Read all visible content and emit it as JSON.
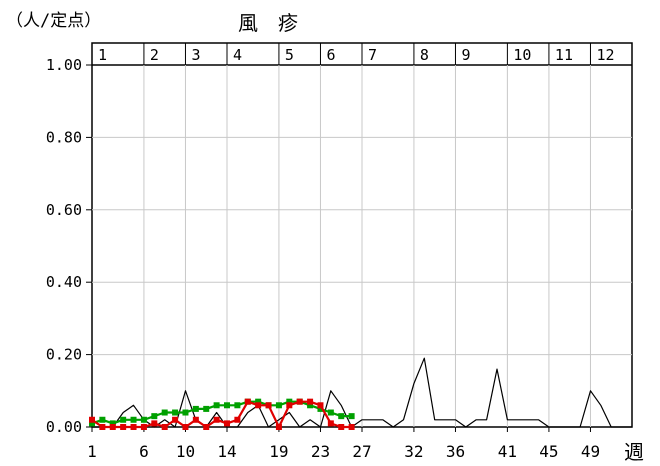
{
  "chart_data": {
    "type": "line",
    "title": "風　疹",
    "unit_label": "（人/定点）",
    "xlabel": "週",
    "ylim": [
      0,
      1.0
    ],
    "xlim": [
      1,
      53
    ],
    "ytick_labels": [
      "0.00",
      "0.20",
      "0.40",
      "0.60",
      "0.80",
      "1.00"
    ],
    "yticks": [
      0,
      0.2,
      0.4,
      0.6,
      0.8,
      1.0
    ],
    "xtick_labels": [
      "1",
      "6",
      "10",
      "14",
      "19",
      "23",
      "27",
      "32",
      "36",
      "41",
      "45",
      "49"
    ],
    "xticks": [
      1,
      6,
      10,
      14,
      19,
      23,
      27,
      32,
      36,
      41,
      45,
      49
    ],
    "month_labels": [
      "1",
      "2",
      "3",
      "4",
      "5",
      "6",
      "7",
      "8",
      "9",
      "10",
      "11",
      "12"
    ],
    "month_starts": [
      1,
      6,
      10,
      14,
      19,
      23,
      27,
      32,
      36,
      41,
      45,
      49
    ],
    "grid": true,
    "series": [
      {
        "color": "#000000",
        "x": [
          1,
          2,
          3,
          4,
          5,
          6,
          7,
          8,
          9,
          10,
          11,
          12,
          13,
          14,
          15,
          16,
          17,
          18,
          19,
          20,
          21,
          22,
          23,
          24,
          25,
          26,
          27,
          28,
          29,
          30,
          31,
          32,
          33,
          34,
          35,
          36,
          37,
          38,
          39,
          40,
          41,
          42,
          43,
          44,
          45,
          46,
          47,
          48,
          49,
          50,
          51,
          52,
          53
        ],
        "y": [
          0,
          0,
          0,
          0.04,
          0.06,
          0.02,
          0,
          0.02,
          0,
          0.1,
          0.02,
          0,
          0.04,
          0,
          0,
          0.04,
          0.06,
          0,
          0.02,
          0.04,
          0,
          0.02,
          0,
          0.1,
          0.06,
          0,
          0.02,
          0.02,
          0.02,
          0,
          0.02,
          0.12,
          0.19,
          0.02,
          0.02,
          0.02,
          0,
          0.02,
          0.02,
          0.16,
          0.02,
          0.02,
          0.02,
          0.02,
          0,
          0,
          0,
          0,
          0.1,
          0.06,
          0,
          0,
          0
        ]
      },
      {
        "color": "#00a000",
        "x": [
          1,
          2,
          3,
          4,
          5,
          6,
          7,
          8,
          9,
          10,
          11,
          12,
          13,
          14,
          15,
          16,
          17,
          18,
          19,
          20,
          21,
          22,
          23,
          24,
          25,
          26
        ],
        "y": [
          0.01,
          0.02,
          0.01,
          0.02,
          0.02,
          0.02,
          0.03,
          0.04,
          0.04,
          0.04,
          0.05,
          0.05,
          0.06,
          0.06,
          0.06,
          0.07,
          0.07,
          0.06,
          0.06,
          0.07,
          0.07,
          0.06,
          0.05,
          0.04,
          0.03,
          0.03
        ]
      },
      {
        "color": "#e00000",
        "x": [
          1,
          2,
          3,
          4,
          5,
          6,
          7,
          8,
          9,
          10,
          11,
          12,
          13,
          14,
          15,
          16,
          17,
          18,
          19,
          20,
          21,
          22,
          23,
          24,
          25,
          26
        ],
        "y": [
          0.02,
          0,
          0,
          0,
          0,
          0,
          0.01,
          0,
          0.02,
          0,
          0.02,
          0,
          0.02,
          0.01,
          0.02,
          0.07,
          0.06,
          0.06,
          0,
          0.06,
          0.07,
          0.07,
          0.06,
          0.01,
          0,
          0
        ]
      }
    ]
  }
}
